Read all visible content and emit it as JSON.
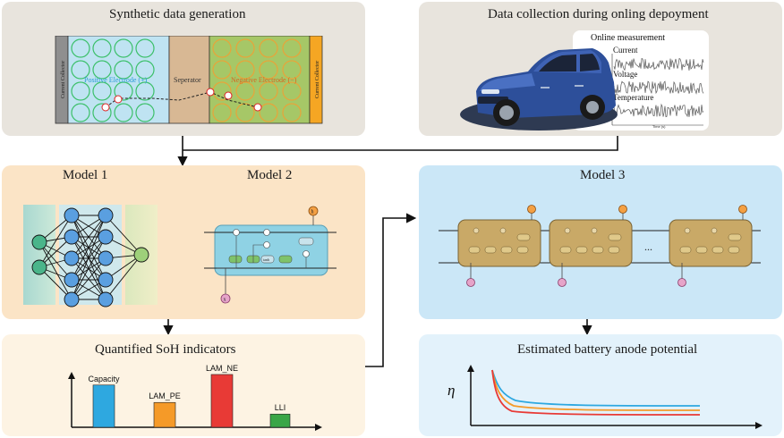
{
  "panels": {
    "synthetic": {
      "title": "Synthetic data generation",
      "current_collector_left": "Current Collector",
      "positive_electrode": "Positive Electrode (+)",
      "separator": "Seperator",
      "negative_electrode": "Negative Electrode (−)",
      "current_collector_right": "Current Collector",
      "ion_symbol": "e",
      "electron_symbol": "Li"
    },
    "collection": {
      "title": "Data collection during onling depoyment",
      "online_measurement": "Online measurement",
      "current": "Current",
      "voltage": "Voltage",
      "temperature": "Temperature",
      "time_axis": "Time (s)"
    },
    "models12": {
      "model1": "Model 1",
      "model2": "Model 2",
      "tanh": "tanh",
      "sigma": "σ",
      "x": "x",
      "h": "h"
    },
    "model3": {
      "title": "Model 3",
      "ellipsis": "..."
    },
    "soh": {
      "title": "Quantified SoH indicators"
    },
    "anode": {
      "title": "Estimated battery anode potential",
      "ylabel": "η"
    }
  },
  "chart_data": {
    "type": "bar",
    "categories": [
      "Capacity",
      "LAM_PE",
      "LAM_NE",
      "LLI"
    ],
    "values": [
      0.8,
      0.47,
      1.0,
      0.25
    ],
    "colors": [
      "#2ea8e0",
      "#f59a28",
      "#e83a36",
      "#3aa647"
    ],
    "title": "Quantified SoH indicators",
    "xlabel": "",
    "ylabel": "",
    "ylim": [
      0,
      1.05
    ]
  },
  "colors": {
    "top_panel": "#e8e4dd",
    "model_panel": "#fbe4c6",
    "soh_panel": "#fdf3e3",
    "model3_panel": "#cbe7f7",
    "anode_panel": "#e3f2fb",
    "positive": "#bfe3f2",
    "separator": "#d8b894",
    "negative": "#a6c767",
    "collector": "#f5a623",
    "lstm_cell": "#c9a967"
  }
}
